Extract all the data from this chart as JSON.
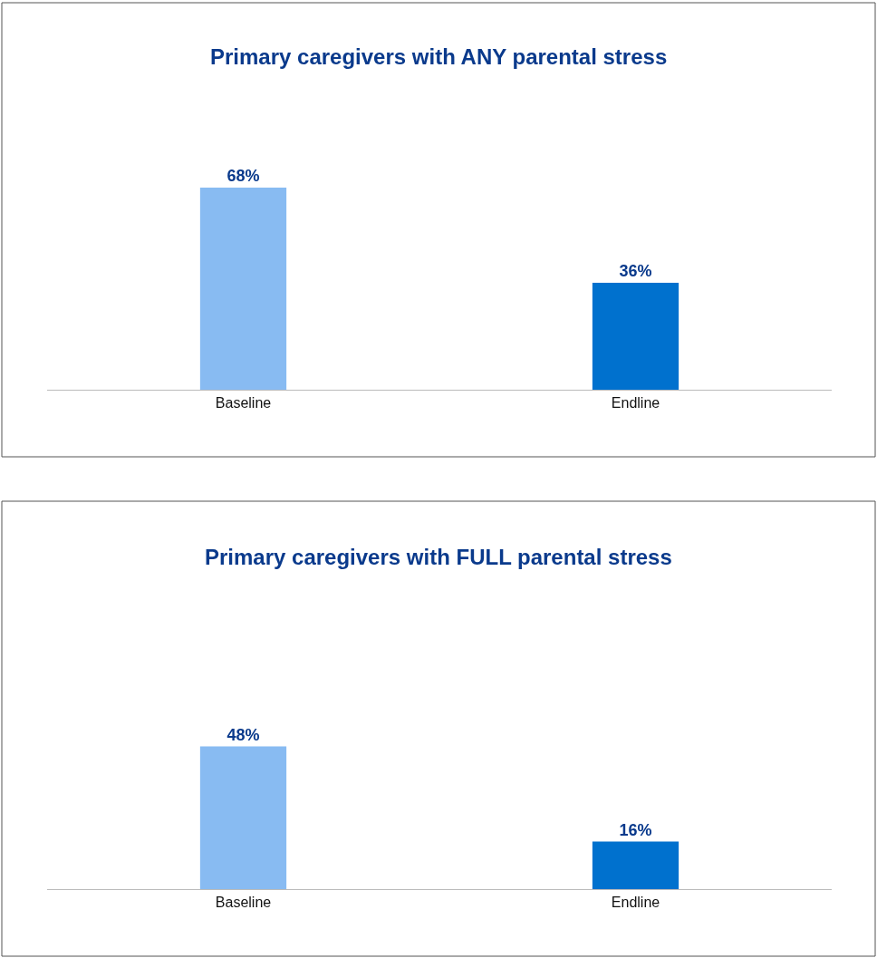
{
  "chart_data": [
    {
      "type": "bar",
      "title": "Primary caregivers with ANY parental stress",
      "categories": [
        "Baseline",
        "Endline"
      ],
      "values": [
        68,
        36
      ],
      "value_labels": [
        "68%",
        "36%"
      ],
      "colors": [
        "#88bbf2",
        "#0071ce"
      ],
      "tick_labels": "x"
    },
    {
      "type": "bar",
      "title": "Primary caregivers with FULL parental stress",
      "categories": [
        "Baseline",
        "Endline"
      ],
      "values": [
        48,
        16
      ],
      "value_labels": [
        "48%",
        "16%"
      ],
      "colors": [
        "#88bbf2",
        "#0071ce"
      ],
      "tick_labels": "x"
    }
  ]
}
